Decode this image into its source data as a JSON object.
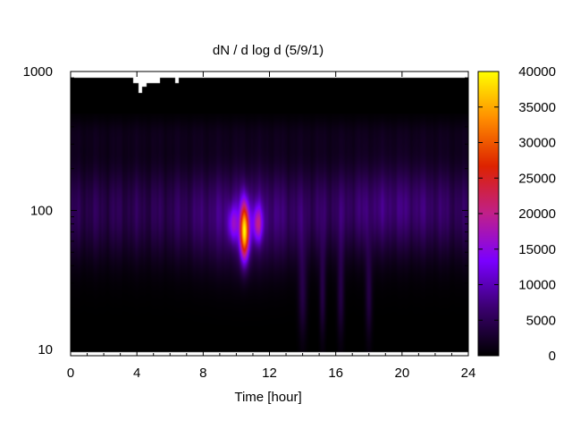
{
  "chart_data": {
    "type": "heatmap",
    "title": "dN / d log d (5/9/1)",
    "xlabel": "Time [hour]",
    "ylabel": "",
    "xlim": [
      0,
      24
    ],
    "ylim": [
      9,
      1000
    ],
    "y_scale": "log",
    "x_ticks": [
      0,
      4,
      8,
      12,
      16,
      20,
      24
    ],
    "x_tick_labels": [
      "0",
      "4",
      "8",
      "12",
      "16",
      "20",
      "24"
    ],
    "y_ticks": [
      10,
      100,
      1000
    ],
    "y_tick_labels": [
      "10",
      "100",
      "1000"
    ],
    "colorbar": {
      "range": [
        0,
        40000
      ],
      "ticks": [
        0,
        5000,
        10000,
        15000,
        20000,
        25000,
        30000,
        35000,
        40000
      ],
      "tick_labels": [
        "0",
        "5000",
        "10000",
        "15000",
        "20000",
        "25000",
        "30000",
        "35000",
        "40000"
      ],
      "palette": [
        "#000000",
        "#3a006e",
        "#7a00ff",
        "#c0208a",
        "#dd2200",
        "#ff8c00",
        "#ffff00"
      ]
    },
    "grid": false,
    "legend": "colorbar-right",
    "data_y_range": [
      9.5,
      900
    ],
    "background_above_data": "#000000",
    "missing_data": [
      {
        "x": [
          3.8,
          4.1
        ],
        "y": [
          820,
          900
        ]
      },
      {
        "x": [
          4.1,
          4.3
        ],
        "y": [
          700,
          900
        ]
      },
      {
        "x": [
          4.3,
          4.6
        ],
        "y": [
          780,
          900
        ]
      },
      {
        "x": [
          4.6,
          5.4
        ],
        "y": [
          830,
          900
        ]
      },
      {
        "x": [
          6.3,
          6.5
        ],
        "y": [
          830,
          900
        ]
      }
    ],
    "peak": {
      "x": 10.5,
      "y": 70,
      "value": 32000
    }
  }
}
